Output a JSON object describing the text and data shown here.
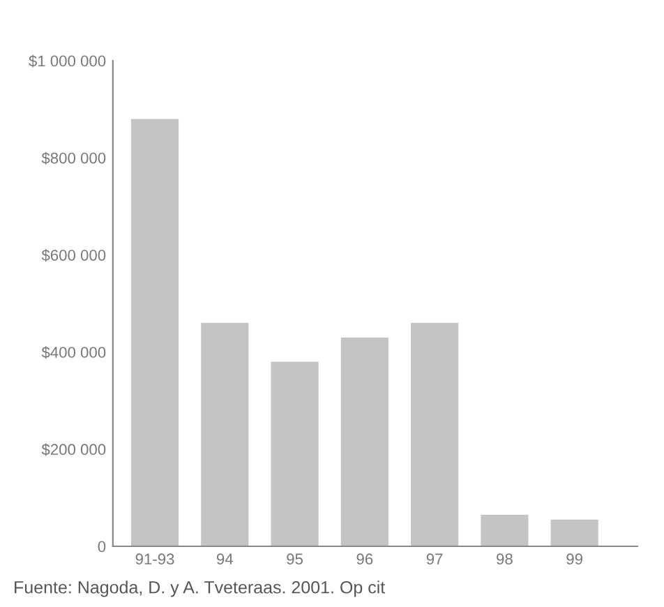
{
  "chart_data": {
    "type": "bar",
    "categories": [
      "91-93",
      "94",
      "95",
      "96",
      "97",
      "98",
      "99"
    ],
    "values": [
      880000,
      460000,
      380000,
      430000,
      460000,
      65000,
      55000
    ],
    "color": "#c4c4c4",
    "ylim": [
      0,
      1000000
    ],
    "yticks": [
      {
        "value": 0,
        "label": "0"
      },
      {
        "value": 200000,
        "label": "$200 000"
      },
      {
        "value": 400000,
        "label": "$400 000"
      },
      {
        "value": 600000,
        "label": "$600 000"
      },
      {
        "value": 800000,
        "label": "$800 000"
      },
      {
        "value": 1000000,
        "label": "$1 000 000"
      }
    ],
    "grid": false,
    "annotations": [
      "Fuente: Nagoda, D. y A. Tveteraas. 2001. Op cit"
    ]
  }
}
